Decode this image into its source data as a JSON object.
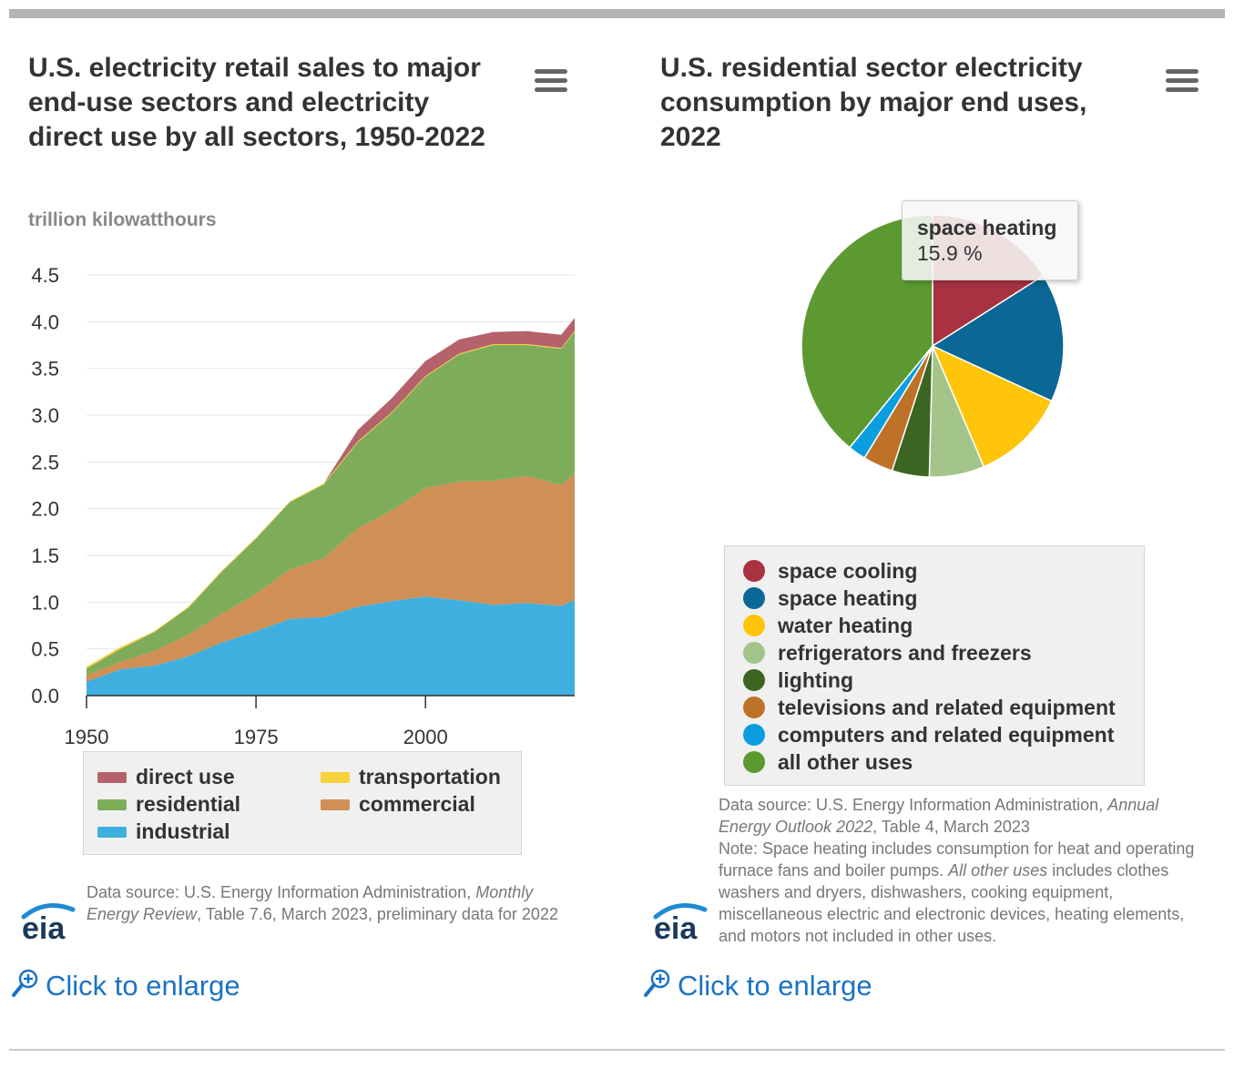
{
  "left": {
    "title": "U.S. electricity retail sales to major end-use sectors and electricity direct use by all sectors, 1950-2022",
    "unit_label": "trillion kilowatthours",
    "legend": [
      {
        "label": "direct use",
        "color": "#b5626b"
      },
      {
        "label": "transportation",
        "color": "#f8d23a"
      },
      {
        "label": "residential",
        "color": "#7fac5a"
      },
      {
        "label": "commercial",
        "color": "#cf8f55"
      },
      {
        "label": "industrial",
        "color": "#3fafe0"
      }
    ],
    "source_prefix": "Data source: U.S. Energy Information Administration, ",
    "source_italic": "Monthly Energy Review",
    "source_suffix": ", Table 7.6, March 2023, preliminary data for 2022",
    "logo_text": "eia",
    "enlarge_label": "Click to enlarge"
  },
  "right": {
    "title": "U.S. residential sector electricity consumption by major end uses, 2022",
    "legend": [
      {
        "label": "space cooling",
        "color": "#a83242"
      },
      {
        "label": "space heating",
        "color": "#0b6796"
      },
      {
        "label": "water heating",
        "color": "#fec50a"
      },
      {
        "label": "refrigerators and freezers",
        "color": "#a4c589"
      },
      {
        "label": "lighting",
        "color": "#3b6520"
      },
      {
        "label": "televisions and related equipment",
        "color": "#bd7228"
      },
      {
        "label": "computers and related equipment",
        "color": "#0a9ee0"
      },
      {
        "label": "all other uses",
        "color": "#5c9a31"
      }
    ],
    "tooltip": {
      "label": "space heating",
      "value": "15.9 %"
    },
    "source_prefix": "Data source: U.S. Energy Information Administration, ",
    "source_italic": "Annual Energy Outlook 2022",
    "source_suffix": ", Table 4, March 2023",
    "note_prefix": "Note: Space heating includes consumption for heat and operating furnace fans and boiler pumps. ",
    "note_italic": "All other uses",
    "note_suffix": " includes clothes washers and dryers, dishwashers, cooking equipment, miscellaneous electric and electronic devices, heating elements, and motors not included in other uses.",
    "logo_text": "eia",
    "enlarge_label": "Click to enlarge"
  },
  "chart_data": [
    {
      "type": "area",
      "title": "U.S. electricity retail sales to major end-use sectors and electricity direct use by all sectors, 1950-2022",
      "ylabel": "trillion kilowatthours",
      "xlim": [
        1950,
        2022
      ],
      "ylim": [
        0,
        4.5
      ],
      "xticks": [
        1950,
        1975,
        2000
      ],
      "yticks": [
        0.0,
        0.5,
        1.0,
        1.5,
        2.0,
        2.5,
        3.0,
        3.5,
        4.0,
        4.5
      ],
      "stacked": true,
      "x": [
        1950,
        1955,
        1960,
        1965,
        1970,
        1975,
        1980,
        1985,
        1990,
        1995,
        2000,
        2005,
        2010,
        2015,
        2020,
        2022
      ],
      "series": [
        {
          "name": "industrial",
          "values": [
            0.15,
            0.28,
            0.32,
            0.42,
            0.57,
            0.69,
            0.82,
            0.84,
            0.95,
            1.01,
            1.06,
            1.02,
            0.97,
            0.99,
            0.96,
            1.02
          ]
        },
        {
          "name": "commercial",
          "values": [
            0.07,
            0.08,
            0.16,
            0.23,
            0.31,
            0.4,
            0.53,
            0.63,
            0.84,
            0.97,
            1.16,
            1.27,
            1.33,
            1.36,
            1.29,
            1.36
          ]
        },
        {
          "name": "residential",
          "values": [
            0.07,
            0.14,
            0.2,
            0.29,
            0.45,
            0.59,
            0.72,
            0.79,
            0.92,
            1.04,
            1.19,
            1.36,
            1.45,
            1.4,
            1.46,
            1.51
          ]
        },
        {
          "name": "transportation",
          "values": [
            0.02,
            0.02,
            0.01,
            0.01,
            0.01,
            0.01,
            0.01,
            0.01,
            0.01,
            0.01,
            0.01,
            0.01,
            0.01,
            0.01,
            0.01,
            0.01
          ]
        },
        {
          "name": "direct use",
          "values": [
            0.0,
            0.0,
            0.0,
            0.0,
            0.0,
            0.0,
            0.0,
            0.0,
            0.12,
            0.15,
            0.16,
            0.15,
            0.13,
            0.14,
            0.14,
            0.14
          ]
        }
      ],
      "legend_position": "bottom"
    },
    {
      "type": "pie",
      "title": "U.S. residential sector electricity consumption by major end uses, 2022",
      "categories": [
        "space cooling",
        "space heating",
        "water heating",
        "refrigerators and freezers",
        "lighting",
        "televisions and related equipment",
        "computers and related equipment",
        "all other uses"
      ],
      "values": [
        16.0,
        15.9,
        11.7,
        6.8,
        4.6,
        3.7,
        2.2,
        39.1
      ],
      "unit": "%",
      "legend_position": "bottom"
    }
  ]
}
